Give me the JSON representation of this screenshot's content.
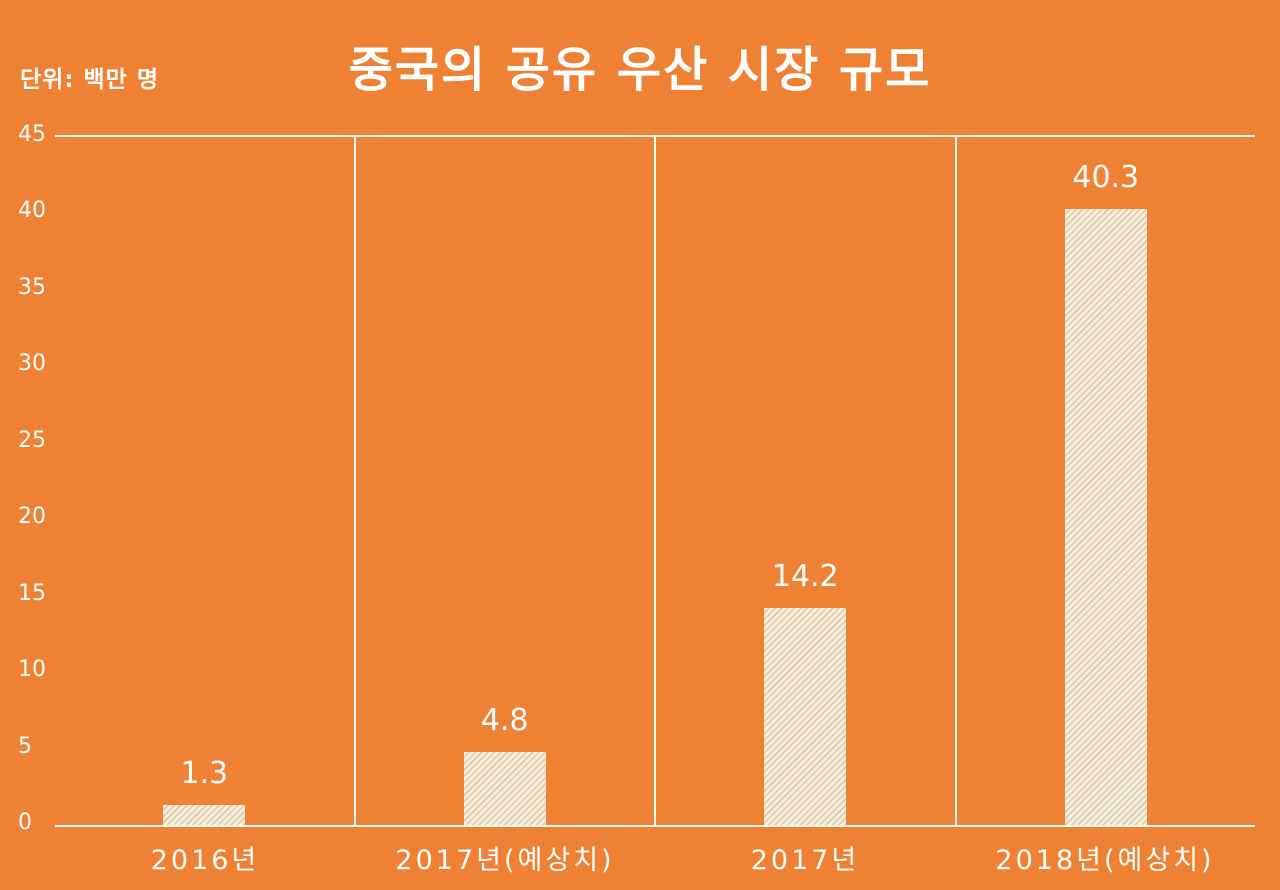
{
  "page": {
    "unit_label": "단위: 백만 명"
  },
  "colors": {
    "background": "#ef8134",
    "text": "#ffffff",
    "gridline": "#ffffff",
    "bar_fill": "#f5eedd",
    "bar_hatch": "#d9cba8"
  },
  "chart_data": {
    "type": "bar",
    "title": "중국의 공유 우산 시장 규모",
    "unit": "단위: 백만 명",
    "categories": [
      "2016년",
      "2017년(예상치)",
      "2017년",
      "2018년(예상치)"
    ],
    "values": [
      1.3,
      4.8,
      14.2,
      40.3
    ],
    "value_labels": [
      "1.3",
      "4.8",
      "14.2",
      "40.3"
    ],
    "xlabel": "",
    "ylabel": "",
    "ylim": [
      0,
      45
    ],
    "yticks": [
      0,
      5,
      10,
      15,
      20,
      25,
      30,
      35,
      40,
      45
    ],
    "grid": "vertical category separators, top and bottom axis lines",
    "legend_position": "none",
    "bar_style": "cream diagonal-hatched bars on orange background"
  }
}
